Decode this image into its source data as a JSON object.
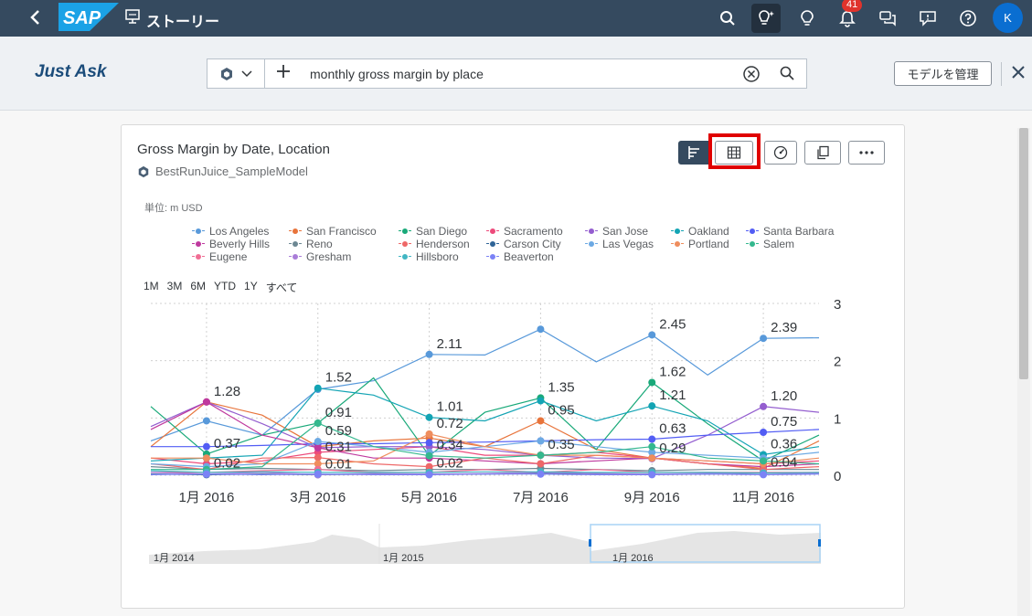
{
  "shell": {
    "title": "ストーリー",
    "notification_count": "41",
    "avatar_initial": "K",
    "brand": "SAP",
    "accent": "#354a5f"
  },
  "ask": {
    "label": "Just Ask",
    "query": "monthly gross margin by place",
    "manage_model_label": "モデルを管理"
  },
  "card": {
    "title": "Gross Margin by Date, Location",
    "model": "BestRunJuice_SampleModel",
    "unit": "単位: m USD",
    "toolbar": [
      "chart-bar-icon",
      "table-grid-icon",
      "gauge-icon",
      "copy-icon",
      "more-icon"
    ],
    "time_ranges": [
      "1M",
      "3M",
      "6M",
      "YTD",
      "1Y",
      "すべて"
    ]
  },
  "chart_data": {
    "type": "line",
    "title": "Gross Margin by Date, Location",
    "ylabel": "",
    "yaxis_side": "right",
    "ylim": [
      0,
      3
    ],
    "yticks": [
      "3",
      "2",
      "1",
      "0"
    ],
    "x_tick_labels": [
      "1月 2016",
      "3月 2016",
      "5月 2016",
      "7月 2016",
      "9月 2016",
      "11月 2016"
    ],
    "x": [
      "2015-12",
      "2016-01",
      "2016-02",
      "2016-03",
      "2016-04",
      "2016-05",
      "2016-06",
      "2016-07",
      "2016-08",
      "2016-09",
      "2016-10",
      "2016-11",
      "2016-12"
    ],
    "grid": true,
    "legend_position": "top",
    "series": [
      {
        "name": "Los Angeles",
        "color": "#5899da",
        "values": [
          0.6,
          0.95,
          0.7,
          1.5,
          1.65,
          2.11,
          2.1,
          2.55,
          1.98,
          2.45,
          1.75,
          2.39,
          2.4
        ]
      },
      {
        "name": "San Francisco",
        "color": "#e8743b",
        "values": [
          0.5,
          1.28,
          1.05,
          0.5,
          0.6,
          0.65,
          0.5,
          0.95,
          0.45,
          0.3,
          0.2,
          0.12,
          0.6
        ]
      },
      {
        "name": "San Diego",
        "color": "#19a979",
        "values": [
          1.2,
          0.37,
          0.7,
          0.91,
          1.7,
          0.34,
          1.1,
          1.35,
          0.45,
          1.62,
          0.9,
          0.25,
          0.7
        ]
      },
      {
        "name": "Sacramento",
        "color": "#ed4a7b",
        "values": [
          0.3,
          0.2,
          0.25,
          0.4,
          0.45,
          0.5,
          0.35,
          0.35,
          0.4,
          0.3,
          0.25,
          0.2,
          0.25
        ]
      },
      {
        "name": "San Jose",
        "color": "#945ecf",
        "values": [
          0.85,
          1.28,
          0.9,
          0.48,
          0.5,
          0.5,
          0.45,
          0.35,
          0.3,
          0.29,
          0.7,
          1.2,
          1.1
        ]
      },
      {
        "name": "Oakland",
        "color": "#13a4b4",
        "values": [
          0.25,
          0.3,
          0.35,
          1.52,
          1.4,
          1.01,
          0.95,
          1.3,
          0.95,
          1.21,
          0.95,
          0.36,
          0.5
        ]
      },
      {
        "name": "Santa Barbara",
        "color": "#525df4",
        "values": [
          0.5,
          0.5,
          0.52,
          0.55,
          0.55,
          0.57,
          0.58,
          0.6,
          0.62,
          0.63,
          0.7,
          0.75,
          0.8
        ]
      },
      {
        "name": "Beverly Hills",
        "color": "#bf399e",
        "values": [
          0.8,
          1.28,
          0.7,
          0.48,
          0.3,
          0.3,
          0.25,
          0.2,
          0.25,
          0.3,
          0.2,
          0.15,
          0.2
        ]
      },
      {
        "name": "Reno",
        "color": "#6c8893",
        "values": [
          0.15,
          0.1,
          0.12,
          0.1,
          0.08,
          0.1,
          0.1,
          0.12,
          0.1,
          0.08,
          0.1,
          0.1,
          0.1
        ]
      },
      {
        "name": "Henderson",
        "color": "#ee6868",
        "values": [
          0.2,
          0.1,
          0.3,
          0.31,
          0.2,
          0.15,
          0.3,
          0.2,
          0.35,
          0.3,
          0.2,
          0.1,
          0.15
        ]
      },
      {
        "name": "Carson City",
        "color": "#2f6497",
        "values": [
          0.02,
          0.01,
          0.02,
          0.01,
          0.02,
          0.02,
          0.02,
          0.03,
          0.02,
          0.02,
          0.02,
          0.04,
          0.03
        ]
      },
      {
        "name": "Las Vegas",
        "color": "#6ca9e3",
        "values": [
          0.2,
          0.15,
          0.2,
          0.59,
          0.5,
          0.4,
          0.5,
          0.6,
          0.5,
          0.4,
          0.35,
          0.3,
          0.4
        ]
      },
      {
        "name": "Portland",
        "color": "#ef8d5d",
        "values": [
          0.3,
          0.3,
          0.2,
          0.2,
          0.25,
          0.72,
          0.5,
          0.35,
          0.35,
          0.3,
          0.25,
          0.2,
          0.3
        ]
      },
      {
        "name": "Salem",
        "color": "#34b88e",
        "values": [
          0.1,
          0.1,
          0.15,
          0.91,
          0.5,
          0.34,
          0.3,
          0.35,
          0.4,
          0.5,
          0.3,
          0.25,
          0.2
        ]
      },
      {
        "name": "Eugene",
        "color": "#f06e94",
        "values": [
          0.05,
          0.05,
          0.08,
          0.1,
          0.05,
          0.05,
          0.1,
          0.05,
          0.1,
          0.05,
          0.05,
          0.05,
          0.05
        ]
      },
      {
        "name": "Gresham",
        "color": "#a97dd8",
        "values": [
          0.05,
          0.02,
          0.05,
          0.01,
          0.03,
          0.02,
          0.03,
          0.05,
          0.03,
          0.02,
          0.03,
          0.04,
          0.03
        ]
      },
      {
        "name": "Hillsboro",
        "color": "#42b6c3",
        "values": [
          0.08,
          0.05,
          0.06,
          0.05,
          0.05,
          0.05,
          0.06,
          0.06,
          0.05,
          0.05,
          0.05,
          0.04,
          0.05
        ]
      },
      {
        "name": "Beaverton",
        "color": "#7b82f6",
        "values": [
          0.01,
          0.02,
          0.01,
          0.02,
          0.01,
          0.01,
          0.02,
          0.02,
          0.01,
          0.01,
          0.02,
          0.01,
          0.02
        ]
      }
    ],
    "data_labels": [
      {
        "x": "2016-01",
        "label": "1.28",
        "value": 1.28
      },
      {
        "x": "2016-01",
        "label": "0.37",
        "value": 0.37
      },
      {
        "x": "2016-01",
        "label": "0.02",
        "value": 0.02
      },
      {
        "x": "2016-03",
        "label": "1.52",
        "value": 1.52
      },
      {
        "x": "2016-03",
        "label": "0.91",
        "value": 0.91
      },
      {
        "x": "2016-03",
        "label": "0.59",
        "value": 0.59
      },
      {
        "x": "2016-03",
        "label": "0.31",
        "value": 0.31
      },
      {
        "x": "2016-03",
        "label": "0.01",
        "value": 0.01
      },
      {
        "x": "2016-05",
        "label": "2.11",
        "value": 2.11
      },
      {
        "x": "2016-05",
        "label": "1.01",
        "value": 1.01
      },
      {
        "x": "2016-05",
        "label": "0.72",
        "value": 0.72
      },
      {
        "x": "2016-05",
        "label": "0.34",
        "value": 0.34
      },
      {
        "x": "2016-05",
        "label": "0.02",
        "value": 0.02
      },
      {
        "x": "2016-07",
        "label": "1.35",
        "value": 1.35
      },
      {
        "x": "2016-07",
        "label": "0.95",
        "value": 0.95
      },
      {
        "x": "2016-07",
        "label": "0.35",
        "value": 0.35
      },
      {
        "x": "2016-09",
        "label": "2.45",
        "value": 2.45
      },
      {
        "x": "2016-09",
        "label": "1.62",
        "value": 1.62
      },
      {
        "x": "2016-09",
        "label": "1.21",
        "value": 1.21
      },
      {
        "x": "2016-09",
        "label": "0.63",
        "value": 0.63
      },
      {
        "x": "2016-09",
        "label": "0.29",
        "value": 0.29
      },
      {
        "x": "2016-11",
        "label": "2.39",
        "value": 2.39
      },
      {
        "x": "2016-11",
        "label": "1.20",
        "value": 1.2
      },
      {
        "x": "2016-11",
        "label": "0.75",
        "value": 0.75
      },
      {
        "x": "2016-11",
        "label": "0.36",
        "value": 0.36
      },
      {
        "x": "2016-11",
        "label": "0.04",
        "value": 0.04
      }
    ]
  },
  "navigator": {
    "labels": [
      "1月 2014",
      "1月 2015",
      "1月 2016"
    ]
  }
}
